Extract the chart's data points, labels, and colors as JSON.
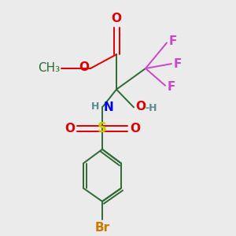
{
  "background_color": "#ebebeb",
  "figsize": [
    3.0,
    3.0
  ],
  "dpi": 100,
  "colors": {
    "C": "#2d6b30",
    "F": "#cc44cc",
    "O": "#dd0000",
    "N": "#0000ee",
    "S": "#cccc00",
    "Br": "#cc7700",
    "H": "#5a8a8a",
    "bond": "#2d6b30"
  }
}
